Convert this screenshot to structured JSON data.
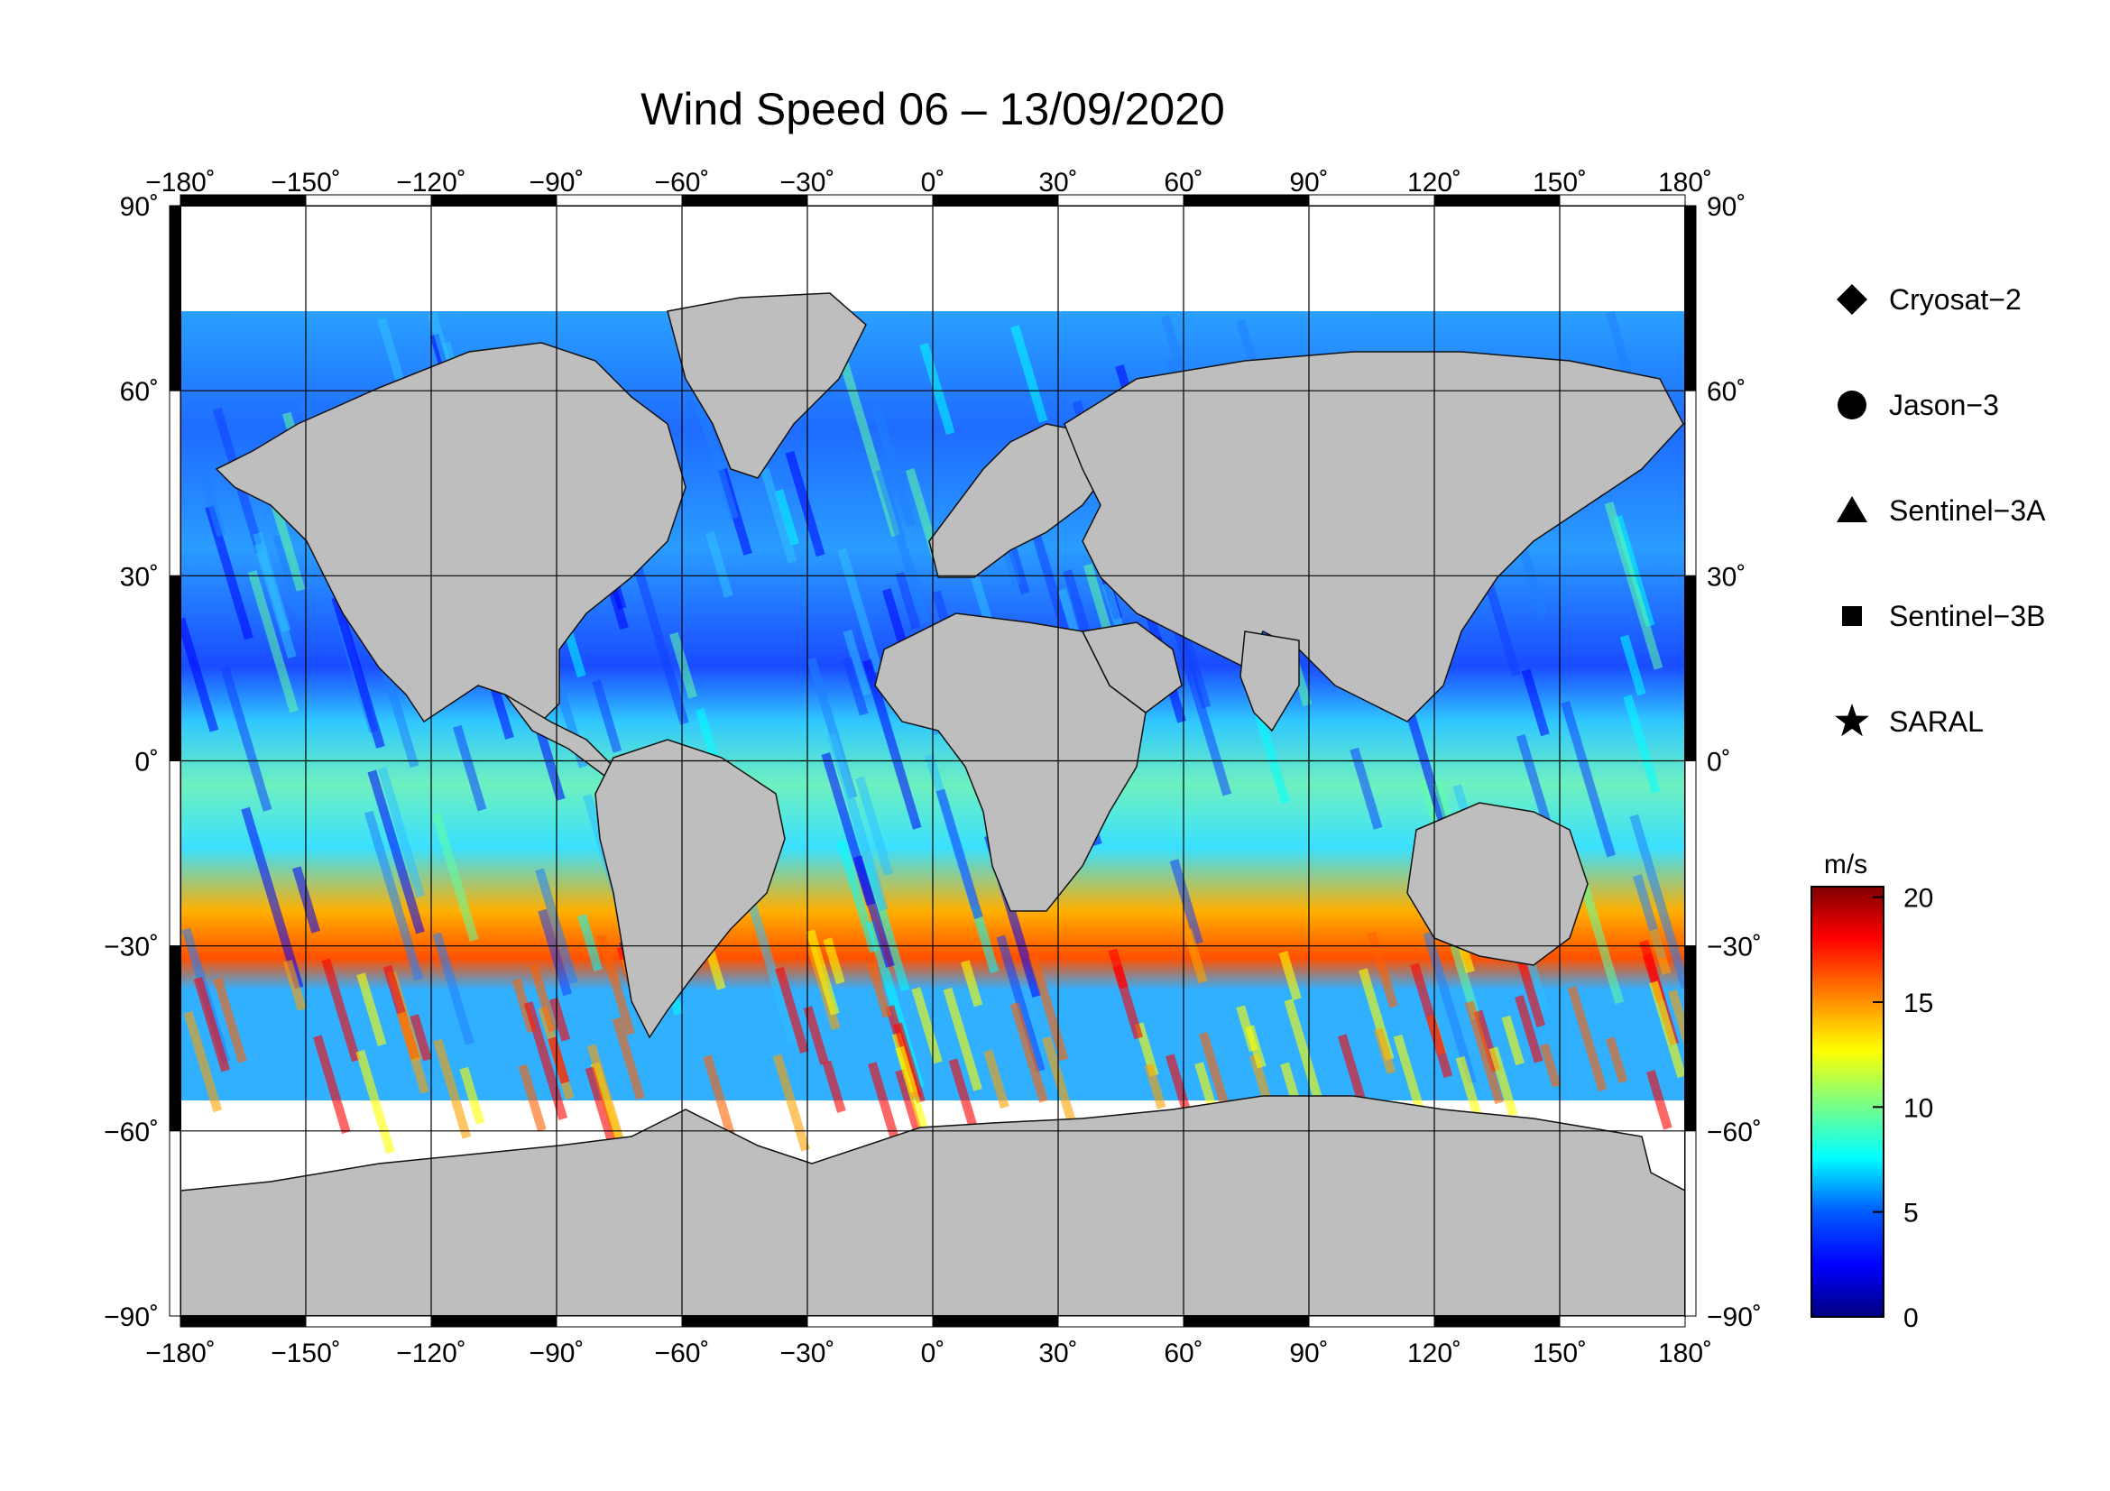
{
  "title": "Wind Speed 06 – 13/09/2020",
  "map": {
    "lon_ticks": [
      "−180˚",
      "−150˚",
      "−120˚",
      "−90˚",
      "−60˚",
      "−30˚",
      "0˚",
      "30˚",
      "60˚",
      "90˚",
      "120˚",
      "150˚",
      "180˚"
    ],
    "lat_ticks": [
      "90˚",
      "60˚",
      "30˚",
      "0˚",
      "−30˚",
      "−60˚",
      "−90˚"
    ],
    "lon_range": [
      -180,
      180
    ],
    "lat_range": [
      -90,
      90
    ],
    "land_color": "#bebebe",
    "no_data_color": "#ffffff"
  },
  "legend": {
    "title_icon_note": "marker legend",
    "items": [
      {
        "label": "Cryosat−2",
        "icon": "diamond-icon"
      },
      {
        "label": "Jason−3",
        "icon": "circle-icon"
      },
      {
        "label": "Sentinel−3A",
        "icon": "triangle-icon"
      },
      {
        "label": "Sentinel−3B",
        "icon": "square-icon"
      },
      {
        "label": "SARAL",
        "icon": "star-icon"
      }
    ]
  },
  "colorbar": {
    "unit": "m/s",
    "ticks": [
      "20",
      "15",
      "10",
      "5",
      "0"
    ],
    "range": [
      0,
      20.5
    ],
    "colors": [
      "#000080",
      "#0000ff",
      "#0080ff",
      "#00ffff",
      "#80ff80",
      "#ffff00",
      "#ff8000",
      "#ff0000",
      "#800000"
    ]
  }
}
